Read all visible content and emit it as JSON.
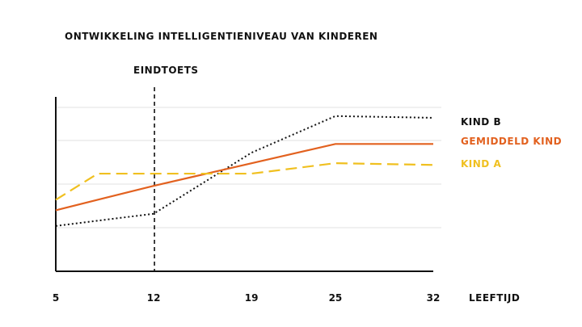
{
  "chart_data": {
    "type": "line",
    "title": "ONTWIKKELING INTELLIGENTIENIVEAU VAN KINDEREN",
    "xlabel": "LEEFTIJD",
    "ylabel": "",
    "x_ticks": [
      "5",
      "12",
      "19",
      "25",
      "32"
    ],
    "xlim": [
      5,
      32
    ],
    "ylim": [
      0,
      100
    ],
    "grid": "horizontal",
    "legend": "right",
    "marker": {
      "label": "EINDTOETS",
      "x": 12,
      "style": "dashed vertical line"
    },
    "series": [
      {
        "name": "KIND B",
        "color": "#111111",
        "style": "dotted",
        "points": [
          [
            5,
            26
          ],
          [
            12,
            33
          ],
          [
            19,
            68
          ],
          [
            25,
            89
          ],
          [
            32,
            88
          ]
        ]
      },
      {
        "name": "GEMIDDELD  KIND",
        "color": "#e2611f",
        "style": "solid",
        "points": [
          [
            5,
            35
          ],
          [
            12,
            49
          ],
          [
            25,
            73
          ],
          [
            32,
            73
          ]
        ]
      },
      {
        "name": "KIND A",
        "color": "#f0c020",
        "style": "dashed",
        "points": [
          [
            5,
            41
          ],
          [
            8,
            56
          ],
          [
            19,
            56
          ],
          [
            25,
            62
          ],
          [
            32,
            61
          ]
        ]
      }
    ]
  }
}
